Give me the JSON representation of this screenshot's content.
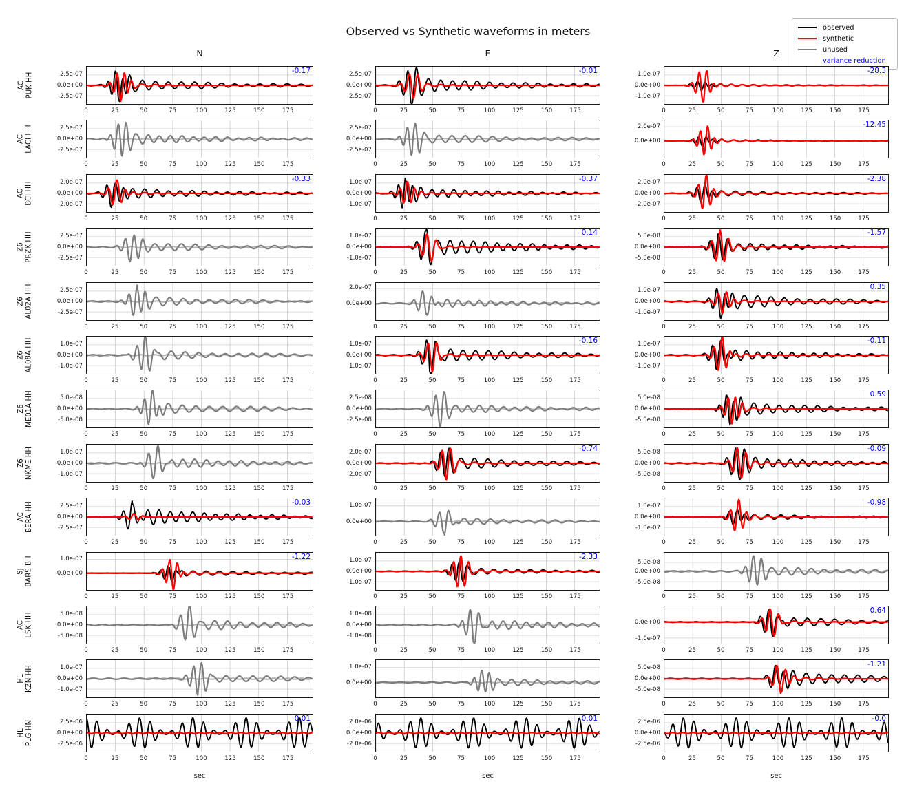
{
  "title": "Observed vs Synthetic waveforms in meters",
  "xlabel": "sec",
  "columns": [
    "N",
    "E",
    "Z"
  ],
  "legend": {
    "items": [
      {
        "label": "observed",
        "color": "#000000",
        "swatch": true
      },
      {
        "label": "synthetic",
        "color": "#ff0000",
        "swatch": true
      },
      {
        "label": "unused",
        "color": "#808080",
        "swatch": true
      },
      {
        "label": "variance reduction",
        "color": "#0000ff",
        "swatch": false
      }
    ]
  },
  "colors": {
    "observed": "#000000",
    "synthetic": "#ff0000",
    "unused": "#7d7d7d",
    "unused_light": "#b4b4b4",
    "variance_reduction": "#0000ff",
    "grid": "#cccccc"
  },
  "chart_data": {
    "type": "line",
    "x_range": [
      0,
      197
    ],
    "x_ticks": [
      0,
      25,
      50,
      75,
      100,
      125,
      150,
      175
    ],
    "x_tick_labels": [
      "0",
      "25",
      "50",
      "75",
      "100",
      "125",
      "150",
      "175"
    ],
    "grid": true,
    "legend_position": "top-right",
    "stations": [
      {
        "net": "AC",
        "sta": "PUK HH",
        "components": [
          {
            "comp": "N",
            "mode": "pair",
            "vr": "-0.17",
            "burst": 28,
            "obs": 1,
            "syn": 1,
            "coda": 0.42,
            "ylabels": [
              "2.5e-07",
              "0.0e+00",
              "-2.5e-07"
            ],
            "ypos": [
              0.22,
              0.5,
              0.78
            ],
            "zero": 0.5
          },
          {
            "comp": "E",
            "mode": "pair",
            "vr": "-0.01",
            "burst": 30,
            "obs": 1,
            "syn": 0.85,
            "coda": 0.5,
            "ylabels": [
              "2.5e-07",
              "0.0e+00",
              "-2.5e-07"
            ],
            "ypos": [
              0.22,
              0.5,
              0.78
            ],
            "zero": 0.5
          },
          {
            "comp": "Z",
            "mode": "pair",
            "vr": "-28.3",
            "burst": 32,
            "obs": 0.3,
            "syn": 1.05,
            "coda": 0.25,
            "ylabels": [
              "1.0e-07",
              "0.0e+00",
              "-1.0e-07"
            ],
            "ypos": [
              0.22,
              0.5,
              0.78
            ],
            "zero": 0.5
          }
        ]
      },
      {
        "net": "AC",
        "sta": "LACI HH",
        "components": [
          {
            "comp": "N",
            "mode": "unused",
            "vr": null,
            "burst": 30,
            "obs": 1,
            "syn": 1,
            "coda": 0.35,
            "ylabels": [
              "2.5e-07",
              "0.0e+00",
              "-2.5e-07"
            ],
            "ypos": [
              0.22,
              0.5,
              0.78
            ],
            "zero": 0.5
          },
          {
            "comp": "E",
            "mode": "unused",
            "vr": null,
            "burst": 32,
            "obs": 1,
            "syn": 1,
            "coda": 0.35,
            "ylabels": [
              "2.5e-07",
              "0.0e+00",
              "-2.5e-07"
            ],
            "ypos": [
              0.22,
              0.5,
              0.78
            ],
            "zero": 0.5
          },
          {
            "comp": "Z",
            "mode": "pair",
            "vr": "-12.45",
            "burst": 34,
            "obs": 0.35,
            "syn": 1,
            "coda": 0.3,
            "ylabels": [
              "2.0e-07",
              "0.0e+00"
            ],
            "ypos": [
              0.17,
              0.55
            ],
            "zero": 0.55
          }
        ]
      },
      {
        "net": "AC",
        "sta": "BCI HH",
        "components": [
          {
            "comp": "N",
            "mode": "pair",
            "vr": "-0.33",
            "burst": 24,
            "obs": 1,
            "syn": 0.9,
            "coda": 0.35,
            "ylabels": [
              "2.0e-07",
              "0.0e+00",
              "-2.0e-07"
            ],
            "ypos": [
              0.22,
              0.5,
              0.78
            ],
            "zero": 0.5
          },
          {
            "comp": "E",
            "mode": "pair",
            "vr": "-0.37",
            "burst": 26,
            "obs": 1,
            "syn": 0.75,
            "coda": 0.35,
            "ylabels": [
              "1.0e-07",
              "0.0e+00",
              "-1.0e-07"
            ],
            "ypos": [
              0.22,
              0.5,
              0.78
            ],
            "zero": 0.5
          },
          {
            "comp": "Z",
            "mode": "pair",
            "vr": "-2.38",
            "burst": 34,
            "obs": 0.6,
            "syn": 1.1,
            "coda": 0.3,
            "ylabels": [
              "2.0e-07",
              "0.0e+00",
              "-2.0e-07"
            ],
            "ypos": [
              0.22,
              0.5,
              0.78
            ],
            "zero": 0.5
          }
        ]
      },
      {
        "net": "Z6",
        "sta": "PRZK HH",
        "components": [
          {
            "comp": "N",
            "mode": "unused",
            "vr": null,
            "burst": 40,
            "obs": 1,
            "syn": 1,
            "coda": 0.3,
            "ylabels": [
              "2.5e-07",
              "0.0e+00",
              "-2.5e-07"
            ],
            "ypos": [
              0.22,
              0.5,
              0.78
            ],
            "zero": 0.5
          },
          {
            "comp": "E",
            "mode": "pair",
            "vr": "0.14",
            "burst": 44,
            "obs": 1,
            "syn": 0.85,
            "coda": 0.6,
            "ylabels": [
              "1.0e-07",
              "0.0e+00",
              "-1.0e-07"
            ],
            "ypos": [
              0.22,
              0.5,
              0.78
            ],
            "zero": 0.5
          },
          {
            "comp": "Z",
            "mode": "pair",
            "vr": "-1.57",
            "burst": 47,
            "obs": 0.8,
            "syn": 1.1,
            "coda": 0.35,
            "ylabels": [
              "5.0e-08",
              "0.0e+00",
              "-5.0e-08"
            ],
            "ypos": [
              0.22,
              0.5,
              0.78
            ],
            "zero": 0.5
          }
        ]
      },
      {
        "net": "Z6",
        "sta": "AL02A HH",
        "components": [
          {
            "comp": "N",
            "mode": "unused",
            "vr": null,
            "burst": 44,
            "obs": 1,
            "syn": 1,
            "coda": 0.3,
            "ylabels": [
              "2.5e-07",
              "0.0e+00",
              "-2.5e-07"
            ],
            "ypos": [
              0.22,
              0.5,
              0.78
            ],
            "zero": 0.5
          },
          {
            "comp": "E",
            "mode": "unused",
            "vr": null,
            "burst": 44,
            "obs": 1,
            "syn": 1,
            "coda": 0.3,
            "ylabels": [
              "2.0e-07",
              "0.0e+00"
            ],
            "ypos": [
              0.15,
              0.55
            ],
            "zero": 0.55
          },
          {
            "comp": "Z",
            "mode": "pair",
            "vr": "0.35",
            "burst": 50,
            "obs": 1.05,
            "syn": 0.75,
            "coda": 0.45,
            "ylabels": [
              "1.0e-07",
              "0.0e+00",
              "-1.0e-07"
            ],
            "ypos": [
              0.22,
              0.5,
              0.78
            ],
            "zero": 0.5
          }
        ]
      },
      {
        "net": "Z6",
        "sta": "AL08A HH",
        "components": [
          {
            "comp": "N",
            "mode": "unused",
            "vr": null,
            "burst": 50,
            "obs": 1,
            "syn": 1,
            "coda": 0.3,
            "ylabels": [
              "1.0e-07",
              "0.0e+00",
              "-1.0e-07"
            ],
            "ypos": [
              0.22,
              0.5,
              0.78
            ],
            "zero": 0.5
          },
          {
            "comp": "E",
            "mode": "pair",
            "vr": "-0.16",
            "burst": 47,
            "obs": 1,
            "syn": 0.9,
            "coda": 0.5,
            "ylabels": [
              "1.0e-07",
              "0.0e+00",
              "-1.0e-07"
            ],
            "ypos": [
              0.22,
              0.5,
              0.78
            ],
            "zero": 0.5
          },
          {
            "comp": "Z",
            "mode": "pair",
            "vr": "-0.11",
            "burst": 48,
            "obs": 1,
            "syn": 1.1,
            "coda": 0.35,
            "ylabels": [
              "1.0e-07",
              "0.0e+00",
              "-1.0e-07"
            ],
            "ypos": [
              0.22,
              0.5,
              0.78
            ],
            "zero": 0.5
          }
        ]
      },
      {
        "net": "Z6",
        "sta": "ME01A HH",
        "components": [
          {
            "comp": "N",
            "mode": "unused",
            "vr": null,
            "burst": 56,
            "obs": 1,
            "syn": 1,
            "coda": 0.35,
            "ylabels": [
              "5.0e-08",
              "0.0e+00",
              "-5.0e-08"
            ],
            "ypos": [
              0.22,
              0.5,
              0.78
            ],
            "zero": 0.5
          },
          {
            "comp": "E",
            "mode": "unused",
            "vr": null,
            "burst": 56,
            "obs": 1,
            "syn": 1,
            "coda": 0.3,
            "ylabels": [
              "2.5e-08",
              "0.0e+00",
              "-2.5e-08"
            ],
            "ypos": [
              0.22,
              0.5,
              0.78
            ],
            "zero": 0.5
          },
          {
            "comp": "Z",
            "mode": "pair",
            "vr": "0.59",
            "burst": 58,
            "obs": 1,
            "syn": 0.95,
            "coda": 0.45,
            "ylabels": [
              "5.0e-08",
              "0.0e+00",
              "-5.0e-08"
            ],
            "ypos": [
              0.22,
              0.5,
              0.78
            ],
            "zero": 0.5
          }
        ]
      },
      {
        "net": "Z6",
        "sta": "NKME HH",
        "components": [
          {
            "comp": "N",
            "mode": "unused",
            "vr": null,
            "burst": 60,
            "obs": 1,
            "syn": 1,
            "coda": 0.35,
            "ylabels": [
              "1.0e-07",
              "0.0e+00",
              "-1.0e-07"
            ],
            "ypos": [
              0.22,
              0.5,
              0.78
            ],
            "zero": 0.5
          },
          {
            "comp": "E",
            "mode": "pair",
            "vr": "-0.74",
            "burst": 60,
            "obs": 0.8,
            "syn": 1.05,
            "coda": 0.5,
            "ylabels": [
              "2.0e-07",
              "0.0e+00",
              "-2.0e-07"
            ],
            "ypos": [
              0.22,
              0.5,
              0.78
            ],
            "zero": 0.5
          },
          {
            "comp": "Z",
            "mode": "pair",
            "vr": "-0.09",
            "burst": 64,
            "obs": 1,
            "syn": 1.05,
            "coda": 0.4,
            "ylabels": [
              "5.0e-08",
              "0.0e+00",
              "-5.0e-08"
            ],
            "ypos": [
              0.22,
              0.5,
              0.78
            ],
            "zero": 0.5
          }
        ]
      },
      {
        "net": "AC",
        "sta": "BERA HH",
        "components": [
          {
            "comp": "N",
            "mode": "pair",
            "vr": "-0.03",
            "burst": 40,
            "obs": 1,
            "syn": 0.22,
            "coda": 0.55,
            "ylabels": [
              "2.5e-07",
              "0.0e+00",
              "-2.5e-07"
            ],
            "ypos": [
              0.22,
              0.5,
              0.78
            ],
            "zero": 0.5
          },
          {
            "comp": "E",
            "mode": "unused",
            "vr": null,
            "burst": 60,
            "obs": 1,
            "syn": 1,
            "coda": 0.3,
            "ylabels": [
              "1.0e-07",
              "0.0e+00"
            ],
            "ypos": [
              0.2,
              0.62
            ],
            "zero": 0.62
          },
          {
            "comp": "Z",
            "mode": "pair",
            "vr": "-0.98",
            "burst": 63,
            "obs": 0.55,
            "syn": 1.05,
            "coda": 0.35,
            "ylabels": [
              "1.0e-07",
              "0.0e+00",
              "-1.0e-07"
            ],
            "ypos": [
              0.22,
              0.5,
              0.78
            ],
            "zero": 0.5
          }
        ]
      },
      {
        "net": "SJ",
        "sta": "BARS BH",
        "components": [
          {
            "comp": "N",
            "mode": "pair",
            "vr": "-1.22",
            "burst": 72,
            "obs": 0.5,
            "syn": 1,
            "coda": 0.45,
            "ylabels": [
              "1.0e-07",
              "0.0e+00"
            ],
            "ypos": [
              0.18,
              0.55
            ],
            "zero": 0.55
          },
          {
            "comp": "E",
            "mode": "pair",
            "vr": "-2.33",
            "burst": 72,
            "obs": 0.6,
            "syn": 1.1,
            "coda": 0.35,
            "ylabels": [
              "1.0e-07",
              "0.0e+00",
              "-1.0e-07"
            ],
            "ypos": [
              0.22,
              0.5,
              0.78
            ],
            "zero": 0.5
          },
          {
            "comp": "Z",
            "mode": "unused",
            "vr": null,
            "burst": 80,
            "obs": 1,
            "syn": 1,
            "coda": 0.3,
            "ylabels": [
              "5.0e-08",
              "0.0e+00",
              "-5.0e-08"
            ],
            "ypos": [
              0.26,
              0.5,
              0.78
            ],
            "zero": 0.5
          }
        ]
      },
      {
        "net": "AC",
        "sta": "LSK HH",
        "components": [
          {
            "comp": "N",
            "mode": "unused",
            "vr": null,
            "burst": 88,
            "obs": 1,
            "syn": 1,
            "coda": 0.35,
            "ylabels": [
              "5.0e-08",
              "0.0e+00",
              "-5.0e-08"
            ],
            "ypos": [
              0.22,
              0.5,
              0.78
            ],
            "zero": 0.5
          },
          {
            "comp": "E",
            "mode": "unused",
            "vr": null,
            "burst": 85,
            "obs": 1,
            "syn": 1,
            "coda": 0.35,
            "ylabels": [
              "1.0e-08",
              "0.0e+00",
              "-1.0e-08"
            ],
            "ypos": [
              0.22,
              0.5,
              0.78
            ],
            "zero": 0.5
          },
          {
            "comp": "Z",
            "mode": "pair",
            "vr": "0.64",
            "burst": 92,
            "obs": 0.9,
            "syn": 1,
            "coda": 0.45,
            "ylabels": [
              "0.0e+00",
              "-1.0e-07"
            ],
            "ypos": [
              0.42,
              0.85
            ],
            "zero": 0.42
          }
        ]
      },
      {
        "net": "HL",
        "sta": "KZN HH",
        "components": [
          {
            "comp": "N",
            "mode": "unused",
            "vr": null,
            "burst": 97,
            "obs": 1,
            "syn": 1,
            "coda": 0.3,
            "ylabels": [
              "1.0e-07",
              "0.0e+00",
              "-1.0e-07"
            ],
            "ypos": [
              0.22,
              0.5,
              0.78
            ],
            "zero": 0.5
          },
          {
            "comp": "E",
            "mode": "unused",
            "vr": null,
            "burst": 95,
            "obs": 1,
            "syn": 1,
            "coda": 0.3,
            "ylabels": [
              "1.0e-07",
              "0.0e+00"
            ],
            "ypos": [
              0.2,
              0.6
            ],
            "zero": 0.6
          },
          {
            "comp": "Z",
            "mode": "pair",
            "vr": "-1.21",
            "burst": 100,
            "obs": 0.9,
            "syn": 1,
            "coda": 0.55,
            "ylabels": [
              "5.0e-08",
              "0.0e+00",
              "-5.0e-08"
            ],
            "ypos": [
              0.22,
              0.5,
              0.78
            ],
            "zero": 0.5
          }
        ]
      },
      {
        "net": "HL",
        "sta": "PLG HN",
        "components": [
          {
            "comp": "N",
            "mode": "pair",
            "vr": "0.01",
            "burst": 100,
            "obs": 1,
            "syn": 0.03,
            "coda": 0.4,
            "sustained": true,
            "ylabels": [
              "2.5e-06",
              "0.0e+00",
              "-2.5e-06"
            ],
            "ypos": [
              0.22,
              0.5,
              0.78
            ],
            "zero": 0.5
          },
          {
            "comp": "E",
            "mode": "pair",
            "vr": "0.01",
            "burst": 100,
            "obs": 1,
            "syn": 0.03,
            "coda": 0.4,
            "sustained": true,
            "ylabels": [
              "2.0e-06",
              "0.0e+00",
              "-2.0e-06"
            ],
            "ypos": [
              0.22,
              0.5,
              0.78
            ],
            "zero": 0.5
          },
          {
            "comp": "Z",
            "mode": "pair",
            "vr": "-0.0",
            "burst": 100,
            "obs": 1,
            "syn": 0.03,
            "coda": 0.4,
            "sustained": true,
            "ylabels": [
              "2.5e-06",
              "0.0e+00",
              "-2.5e-06"
            ],
            "ypos": [
              0.22,
              0.5,
              0.78
            ],
            "zero": 0.5
          }
        ]
      }
    ]
  }
}
